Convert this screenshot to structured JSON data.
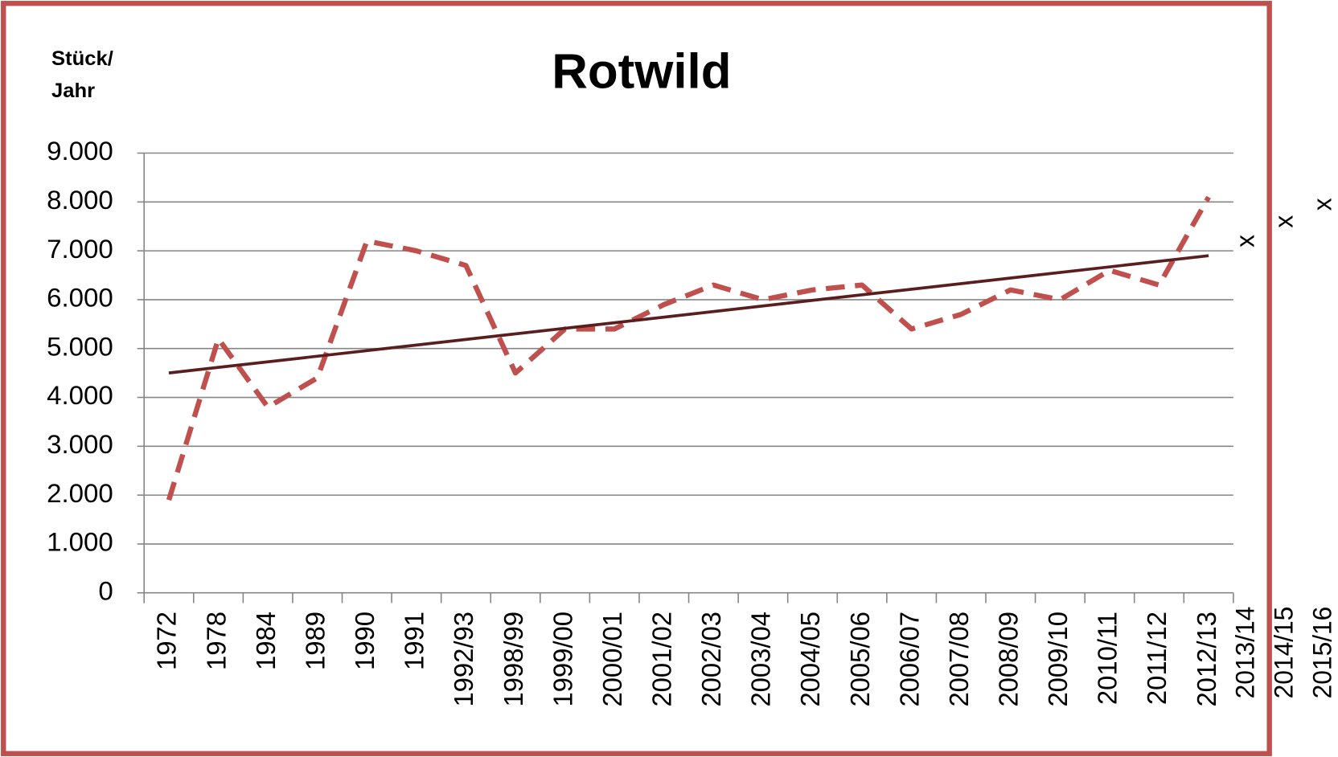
{
  "chart_data": {
    "type": "line",
    "title": "Rotwild",
    "y_label_lines": [
      "Stück/",
      "Jahr"
    ],
    "categories": [
      "1972",
      "1978",
      "1984",
      "1989",
      "1990",
      "1991",
      "1992/93",
      "1998/99",
      "1999/00",
      "2000/01",
      "2001/02",
      "2002/03",
      "2003/04",
      "2004/05",
      "2005/06",
      "2006/07",
      "2007/08",
      "2008/09",
      "2009/10",
      "2010/11",
      "2011/12",
      "2012/13"
    ],
    "series": [
      {
        "color": "#c0504d",
        "values": [
          1900,
          5200,
          3800,
          4400,
          7200,
          7000,
          6700,
          4500,
          5400,
          5400,
          5900,
          6300,
          6000,
          6200,
          6300,
          5400,
          5700,
          6200,
          6000,
          6600,
          6300,
          8100
        ]
      }
    ],
    "trend": {
      "color": "#5a1e1e",
      "start": 4500,
      "end": 6900
    },
    "annotations": [
      {
        "label": "2013/14",
        "marker": "x",
        "value": 7200
      },
      {
        "label": "2014/15",
        "marker": "x",
        "value": 7600
      },
      {
        "label": "2015/16",
        "marker": "x",
        "value": 7950
      }
    ],
    "ylim": [
      0,
      9000
    ],
    "yticks": [
      0,
      {
        "value": 1000,
        "label": "1.000"
      },
      {
        "value": 2000,
        "label": "2.000"
      },
      {
        "value": 3000,
        "label": "3.000"
      },
      {
        "value": 4000,
        "label": "4.000"
      },
      {
        "value": 5000,
        "label": "5.000"
      },
      {
        "value": 6000,
        "label": "6.000"
      },
      {
        "value": 7000,
        "label": "7.000"
      },
      {
        "value": 8000,
        "label": "8.000"
      },
      {
        "value": 9000,
        "label": "9.000"
      }
    ],
    "grid": true
  }
}
